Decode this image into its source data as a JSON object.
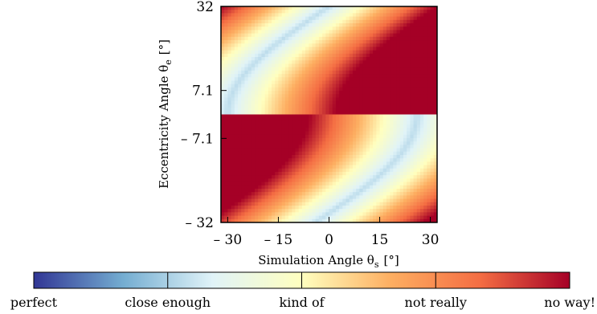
{
  "chart_data": {
    "type": "heatmap",
    "xlabel": "Simulation Angle θs [°]",
    "xlabel_main": "Simulation Angle θ",
    "xlabel_sub": "s",
    "xlabel_unit": "[°]",
    "ylabel": "Eccentricity Angle θe [°]",
    "ylabel_main": "Eccentricity Angle θ",
    "ylabel_sub": "e",
    "ylabel_unit": "[°]",
    "x_ticks": [
      {
        "value": -30,
        "label": "– 30"
      },
      {
        "value": -15,
        "label": "– 15"
      },
      {
        "value": 0,
        "label": "0"
      },
      {
        "value": 15,
        "label": "15"
      },
      {
        "value": 30,
        "label": "30"
      }
    ],
    "y_ticks": [
      {
        "value": 32,
        "label": "32"
      },
      {
        "value": 7.1,
        "label": "7.1"
      },
      {
        "value": -7.1,
        "label": "– 7.1"
      },
      {
        "value": -32,
        "label": "– 32"
      }
    ],
    "xlim": [
      -32,
      32
    ],
    "ylim": [
      -32,
      32
    ],
    "colorbar": {
      "labels": [
        "perfect",
        "close enough",
        "kind of",
        "not really",
        "no way!"
      ],
      "colors": [
        "#313695",
        "#74add1",
        "#e0f3f8",
        "#ffffbf",
        "#fdae61",
        "#f46d43",
        "#a50026"
      ]
    }
  }
}
